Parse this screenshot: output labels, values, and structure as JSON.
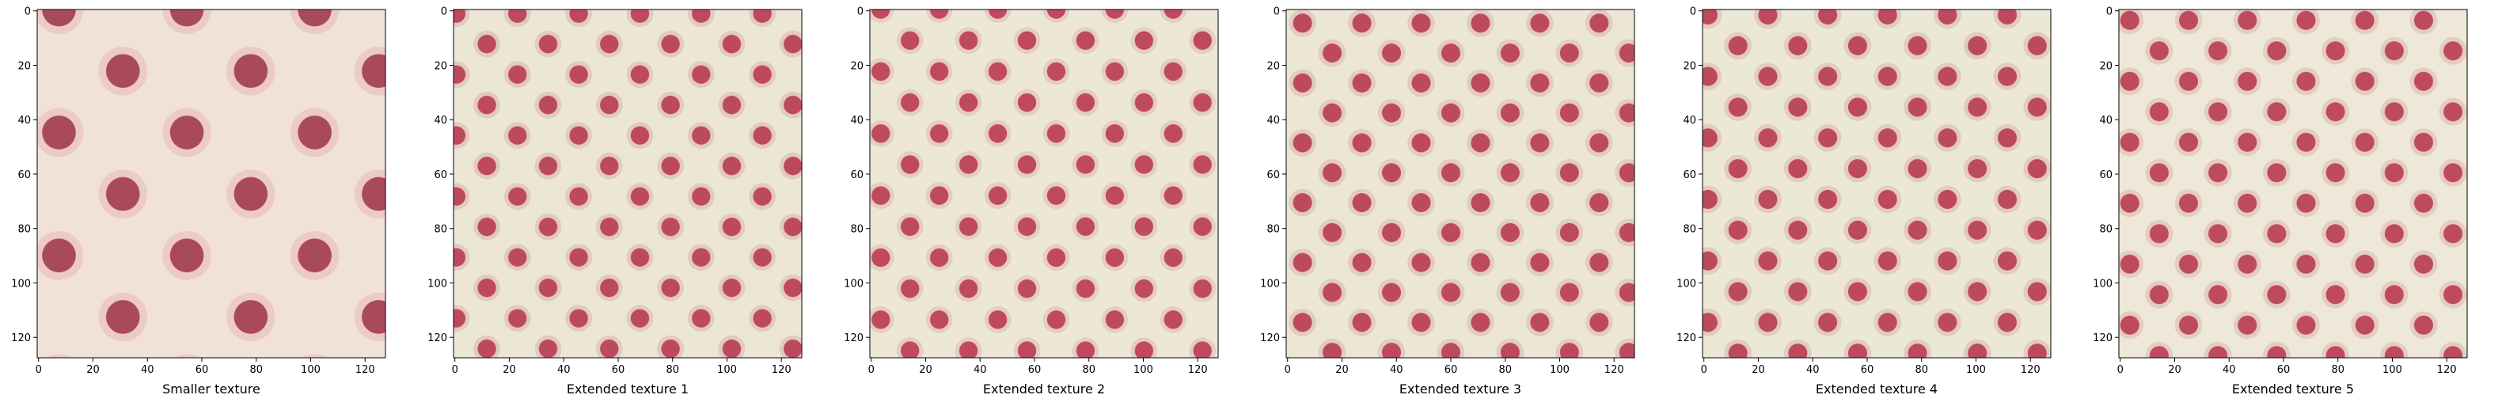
{
  "chart_data": [
    {
      "type": "image",
      "xlabel": "Smaller texture",
      "xlim": [
        -0.5,
        127.5
      ],
      "ylim": [
        127.5,
        -0.5
      ],
      "xticks": [
        0,
        20,
        40,
        60,
        80,
        100,
        120
      ],
      "yticks": [
        0,
        20,
        40,
        60,
        80,
        100,
        120
      ]
    },
    {
      "type": "image",
      "xlabel": "Extended texture 1",
      "xlim": [
        -0.5,
        127.5
      ],
      "ylim": [
        127.5,
        -0.5
      ],
      "xticks": [
        0,
        20,
        40,
        60,
        80,
        100,
        120
      ],
      "yticks": [
        0,
        20,
        40,
        60,
        80,
        100,
        120
      ]
    },
    {
      "type": "image",
      "xlabel": "Extended texture 2",
      "xlim": [
        -0.5,
        127.5
      ],
      "ylim": [
        127.5,
        -0.5
      ],
      "xticks": [
        0,
        20,
        40,
        60,
        80,
        100,
        120
      ],
      "yticks": [
        0,
        20,
        40,
        60,
        80,
        100,
        120
      ]
    },
    {
      "type": "image",
      "xlabel": "Extended texture 3",
      "xlim": [
        -0.5,
        127.5
      ],
      "ylim": [
        127.5,
        -0.5
      ],
      "xticks": [
        0,
        20,
        40,
        60,
        80,
        100,
        120
      ],
      "yticks": [
        0,
        20,
        40,
        60,
        80,
        100,
        120
      ]
    },
    {
      "type": "image",
      "xlabel": "Extended texture 4",
      "xlim": [
        -0.5,
        127.5
      ],
      "ylim": [
        127.5,
        -0.5
      ],
      "xticks": [
        0,
        20,
        40,
        60,
        80,
        100,
        120
      ],
      "yticks": [
        0,
        20,
        40,
        60,
        80,
        100,
        120
      ]
    },
    {
      "type": "image",
      "xlabel": "Extended texture 5",
      "xlim": [
        -0.5,
        127.5
      ],
      "ylim": [
        127.5,
        -0.5
      ],
      "xticks": [
        0,
        20,
        40,
        60,
        80,
        100,
        120
      ],
      "yticks": [
        0,
        20,
        40,
        60,
        80,
        100,
        120
      ]
    }
  ]
}
